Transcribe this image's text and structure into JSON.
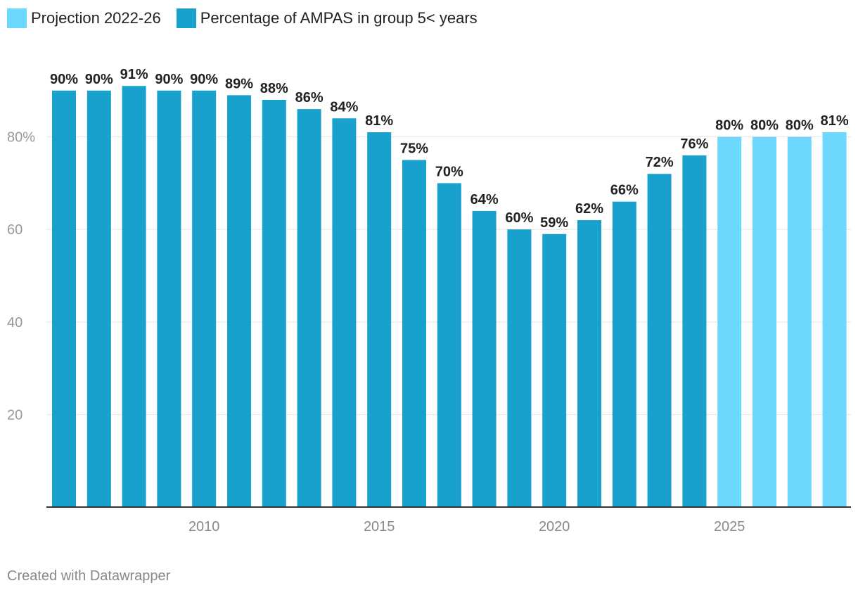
{
  "chart_data": {
    "type": "bar",
    "title": "",
    "xlabel": "",
    "ylabel": "",
    "ylim": [
      0,
      100
    ],
    "yticks": [
      20,
      40,
      60,
      80
    ],
    "ytick_labels": [
      "20",
      "40",
      "60",
      "80%"
    ],
    "xticks": [
      2010,
      2015,
      2020,
      2025
    ],
    "xtick_labels": [
      "2010",
      "2015",
      "2020",
      "2025"
    ],
    "categories": [
      2006,
      2007,
      2008,
      2009,
      2010,
      2011,
      2012,
      2013,
      2014,
      2015,
      2016,
      2017,
      2018,
      2019,
      2020,
      2021,
      2022,
      2023,
      2024,
      2025,
      2026,
      2027,
      2028
    ],
    "values": [
      90,
      90,
      91,
      90,
      90,
      89,
      88,
      86,
      84,
      81,
      75,
      70,
      64,
      60,
      59,
      62,
      66,
      72,
      76,
      80,
      80,
      80,
      81
    ],
    "projection_from": 2025,
    "grid": true,
    "legend": {
      "placement": "top-left",
      "entries": [
        {
          "label": "Projection 2022-26",
          "color": "#6cd8fd"
        },
        {
          "label": "Percentage of AMPAS in group 5< years",
          "color": "#18a1cd"
        }
      ]
    }
  },
  "footer": "Created with Datawrapper",
  "colors": {
    "actual": "#18a1cd",
    "projection": "#6cd8fd",
    "grid": "#e5e5e5",
    "axis": "#333333"
  }
}
